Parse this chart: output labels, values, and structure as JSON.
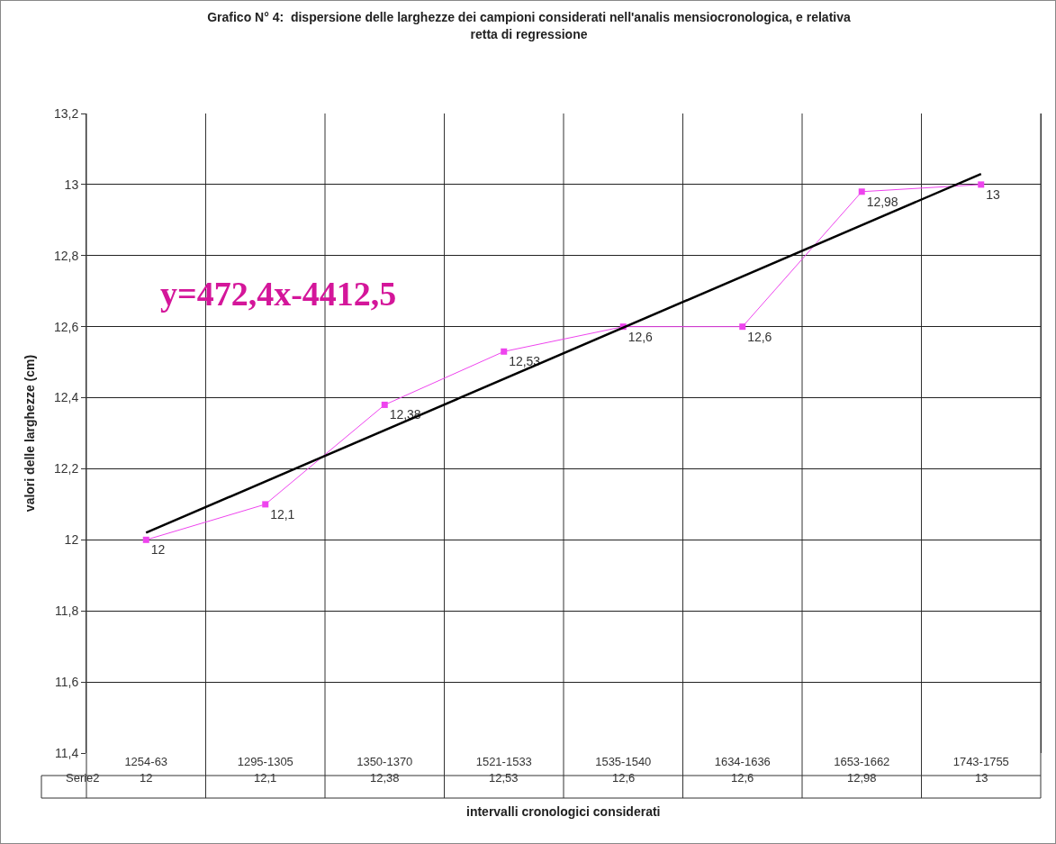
{
  "chart_data": {
    "type": "line",
    "title": "Grafico N° 4:  dispersione delle larghezze dei campioni considerati nell'analis mensiocronologica, e relativa\nretta di regressione",
    "xlabel": "intervalli cronologici considerati",
    "ylabel": "valori delle larghezze (cm)",
    "annotations": [
      "y=472,4x-4412,5"
    ],
    "categories": [
      "1254-63",
      "1295-1305",
      "1350-1370",
      "1521-1533",
      "1535-1540",
      "1634-1636",
      "1653-1662",
      "1743-1755"
    ],
    "series": [
      {
        "name": "Serie2",
        "color": "#ee44ee",
        "values": [
          12,
          12.1,
          12.38,
          12.53,
          12.6,
          12.6,
          12.98,
          13
        ],
        "value_labels": [
          "12",
          "12,1",
          "12,38",
          "12,53",
          "12,6",
          "12,6",
          "12,98",
          "13"
        ],
        "marker": "square"
      },
      {
        "type": "line",
        "color": "#000000",
        "x": [
          "1254-63",
          "1743-1755"
        ],
        "values": [
          12.02,
          13.03
        ],
        "marker": "none"
      }
    ],
    "ylim": [
      11.4,
      13.2
    ],
    "yticks": [
      {
        "value": 11.4,
        "label": "11,4"
      },
      {
        "value": 11.6,
        "label": "11,6"
      },
      {
        "value": 11.8,
        "label": "11,8"
      },
      {
        "value": 12,
        "label": "12"
      },
      {
        "value": 12.2,
        "label": "12,2"
      },
      {
        "value": 12.4,
        "label": "12,4"
      },
      {
        "value": 12.6,
        "label": "12,6"
      },
      {
        "value": 12.8,
        "label": "12,8"
      },
      {
        "value": 13,
        "label": "13"
      },
      {
        "value": 13.2,
        "label": "13,2"
      }
    ],
    "grid": true,
    "legend": false
  }
}
